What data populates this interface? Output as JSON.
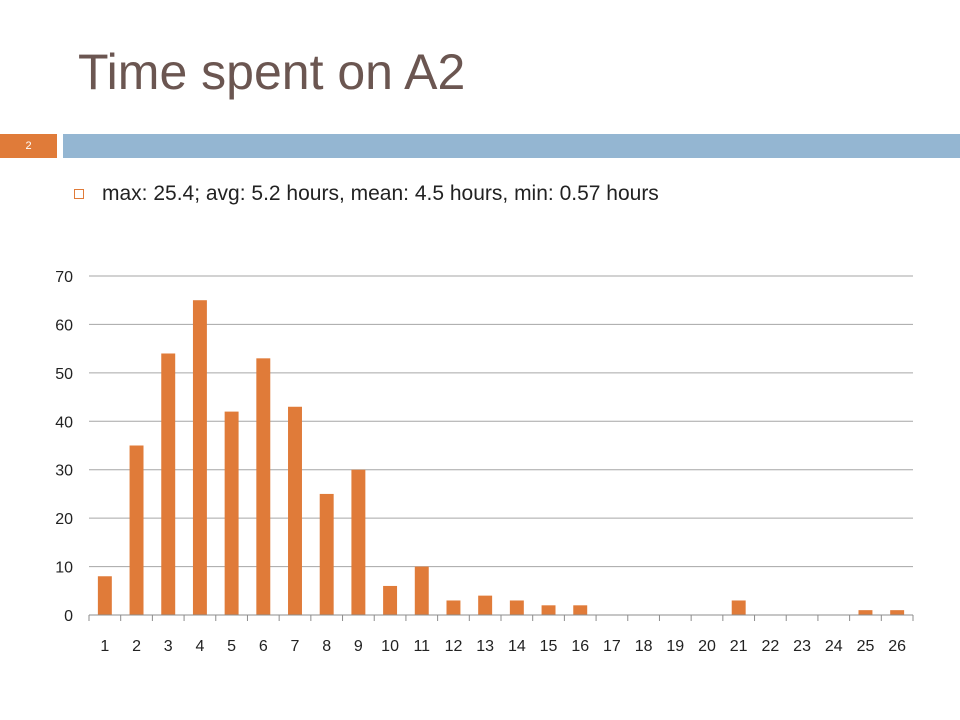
{
  "slide": {
    "title": "Time spent on A2",
    "number": "2",
    "bullet": "max:  25.4; avg:  5.2 hours, mean: 4.5 hours, min:  0.57 hours"
  },
  "colors": {
    "bar": "#e07b39",
    "title": "#6b5651",
    "header_bar": "#94b6d2",
    "gridline": "#a6a6a6"
  },
  "chart_data": {
    "type": "bar",
    "categories": [
      "1",
      "2",
      "3",
      "4",
      "5",
      "6",
      "7",
      "8",
      "9",
      "10",
      "11",
      "12",
      "13",
      "14",
      "15",
      "16",
      "17",
      "18",
      "19",
      "20",
      "21",
      "22",
      "23",
      "24",
      "25",
      "26"
    ],
    "values": [
      8,
      35,
      54,
      65,
      42,
      53,
      43,
      25,
      30,
      6,
      10,
      3,
      4,
      3,
      2,
      2,
      0,
      0,
      0,
      0,
      3,
      0,
      0,
      0,
      1,
      1
    ],
    "ylim": [
      0,
      70
    ],
    "yticks": [
      0,
      10,
      20,
      30,
      40,
      50,
      60,
      70
    ],
    "grid": true,
    "legend": "none"
  }
}
